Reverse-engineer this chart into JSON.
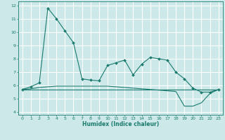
{
  "xlabel": "Humidex (Indice chaleur)",
  "xlim": [
    -0.5,
    23.5
  ],
  "ylim": [
    3.8,
    12.3
  ],
  "yticks": [
    4,
    5,
    6,
    7,
    8,
    9,
    10,
    11,
    12
  ],
  "xticks": [
    0,
    1,
    2,
    3,
    4,
    5,
    6,
    7,
    8,
    9,
    10,
    11,
    12,
    13,
    14,
    15,
    16,
    17,
    18,
    19,
    20,
    21,
    22,
    23
  ],
  "bg_color": "#cce8e8",
  "grid_color": "#ffffff",
  "line_color": "#1a7a6e",
  "line1_x": [
    0,
    1,
    2,
    3,
    4,
    5,
    6,
    7,
    8,
    9,
    10,
    11,
    12,
    13,
    14,
    15,
    16,
    17,
    18,
    19,
    20,
    21,
    22,
    23
  ],
  "line1_y": [
    5.7,
    5.9,
    6.2,
    11.8,
    11.0,
    10.1,
    9.2,
    6.5,
    6.4,
    6.35,
    7.5,
    7.7,
    7.9,
    6.8,
    7.6,
    8.1,
    8.0,
    7.9,
    7.0,
    6.5,
    5.8,
    5.5,
    5.5,
    5.7
  ],
  "line2_x": [
    0,
    23
  ],
  "line2_y": [
    5.7,
    5.7
  ],
  "line3_x": [
    0,
    1,
    2,
    3,
    4,
    5,
    6,
    7,
    8,
    9,
    10,
    11,
    12,
    13,
    14,
    15,
    16,
    17,
    18,
    19,
    20,
    21,
    22,
    23
  ],
  "line3_y": [
    5.7,
    5.75,
    5.85,
    5.9,
    5.95,
    5.95,
    5.95,
    5.95,
    5.95,
    5.95,
    5.95,
    5.9,
    5.85,
    5.8,
    5.75,
    5.7,
    5.65,
    5.6,
    5.55,
    4.45,
    4.45,
    4.7,
    5.4,
    5.7
  ]
}
